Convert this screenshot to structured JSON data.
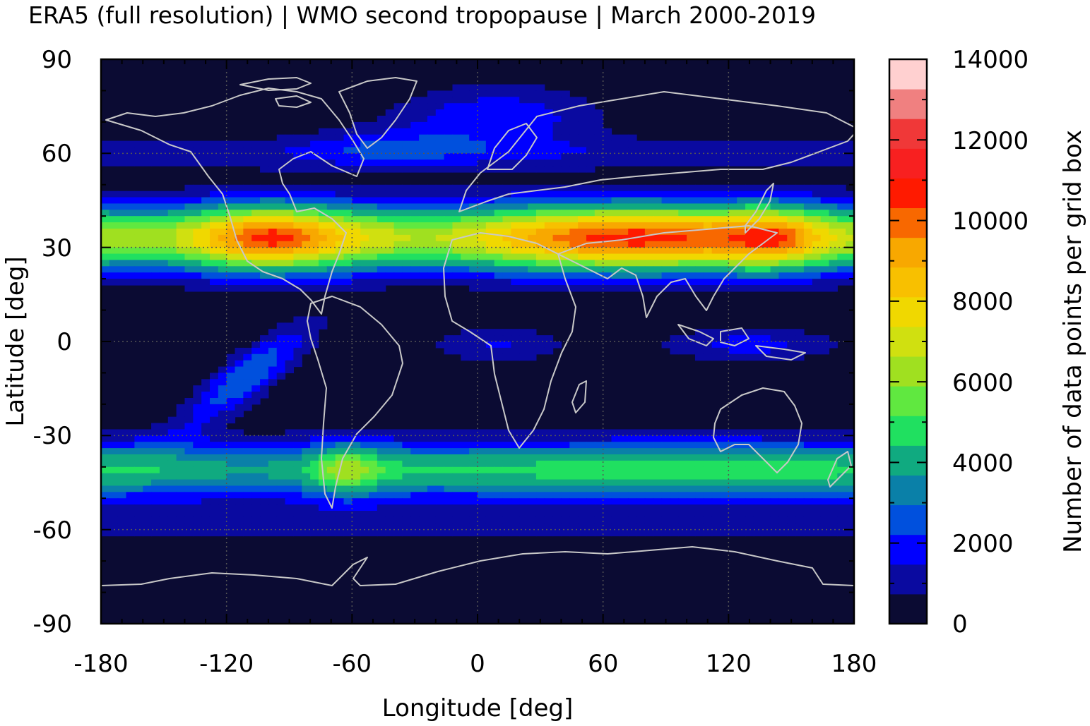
{
  "title": "ERA5 (full resolution) | WMO second tropopause | March 2000-2019",
  "map": {
    "projection": "equirectangular",
    "lon_range": [
      -180,
      180
    ],
    "lat_range": [
      -90,
      90
    ],
    "background_color": "#0b0b33",
    "coastline_color": "#c8c8c8",
    "grid_lines_dotted": true
  },
  "axes": {
    "xlabel": "Longitude [deg]",
    "ylabel": "Latitude [deg]",
    "xticks": [
      "-180",
      "-120",
      "-60",
      "0",
      "60",
      "120",
      "180"
    ],
    "yticks": [
      "90",
      "60",
      "30",
      "0",
      "-30",
      "-60",
      "-90"
    ]
  },
  "colorbar": {
    "label": "Number of data points per grid box",
    "ticks": [
      "0",
      "2000",
      "4000",
      "6000",
      "8000",
      "10000",
      "12000",
      "14000"
    ],
    "range": [
      0,
      14000
    ],
    "levels": [
      "#0b0b33",
      "#0a0aa0",
      "#0000ff",
      "#0050dd",
      "#0a80a8",
      "#10aa80",
      "#20e060",
      "#60e840",
      "#a0e020",
      "#d0e010",
      "#f0d800",
      "#f8c000",
      "#f8a800",
      "#f86800",
      "#ff1a00",
      "#f82020",
      "#f03838",
      "#f08080",
      "#ffd0d0"
    ]
  },
  "chart_data": {
    "type": "heatmap",
    "title": "ERA5 (full resolution) | WMO second tropopause | March 2000-2019",
    "xlabel": "Longitude [deg]",
    "ylabel": "Latitude [deg]",
    "xlim": [
      -180,
      180
    ],
    "ylim": [
      -90,
      90
    ],
    "color_label": "Number of data points per grid box",
    "color_range": [
      0,
      14000
    ],
    "features": [
      {
        "region": "northern subtropical band",
        "lat_center": 33,
        "max_value": 11000,
        "peak_longitudes": [
          -100,
          60,
          120
        ]
      },
      {
        "region": "southern mid-latitude band",
        "lat_center": -40,
        "max_value": 6500,
        "peak_longitudes": [
          -65
        ]
      },
      {
        "region": "south-east Pacific branch",
        "lat_center": -20,
        "lon_center": -130,
        "max_value": 3000
      },
      {
        "region": "tropical Africa / Maritime Continent",
        "lat_center": 0,
        "max_value": 2000
      },
      {
        "region": "North Atlantic / Scandinavia",
        "lat_center": 70,
        "max_value": 2000
      }
    ]
  }
}
